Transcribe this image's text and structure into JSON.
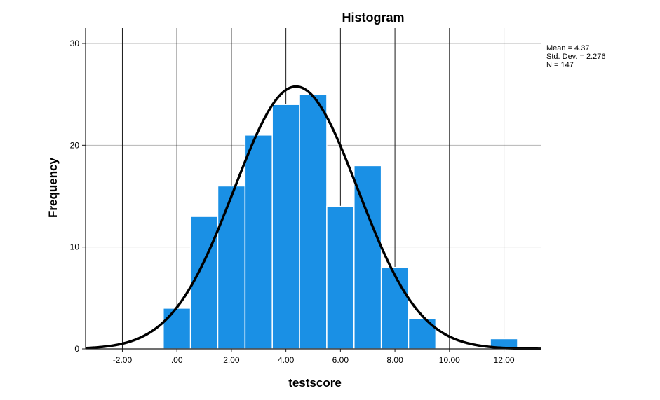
{
  "chart_data": {
    "type": "bar",
    "title": "Histogram",
    "xlabel": "testscore",
    "ylabel": "Frequency",
    "bins": [
      {
        "start": -0.5,
        "end": 0.5,
        "count": 4
      },
      {
        "start": 0.5,
        "end": 1.5,
        "count": 13
      },
      {
        "start": 1.5,
        "end": 2.5,
        "count": 16
      },
      {
        "start": 2.5,
        "end": 3.5,
        "count": 21
      },
      {
        "start": 3.5,
        "end": 4.5,
        "count": 24
      },
      {
        "start": 4.5,
        "end": 5.5,
        "count": 25
      },
      {
        "start": 5.5,
        "end": 6.5,
        "count": 14
      },
      {
        "start": 6.5,
        "end": 7.5,
        "count": 18
      },
      {
        "start": 7.5,
        "end": 8.5,
        "count": 8
      },
      {
        "start": 8.5,
        "end": 9.5,
        "count": 3
      },
      {
        "start": 11.5,
        "end": 12.5,
        "count": 1
      }
    ],
    "xticks": [
      -2,
      0,
      2,
      4,
      6,
      8,
      10,
      12
    ],
    "xtick_labels": [
      "-2.00",
      ".00",
      "2.00",
      "4.00",
      "6.00",
      "8.00",
      "10.00",
      "12.00"
    ],
    "yticks": [
      0,
      10,
      20,
      30
    ],
    "ytick_labels": [
      "0",
      "10",
      "20",
      "30"
    ],
    "xlim": [
      -3.35,
      13.35
    ],
    "ylim": [
      0,
      30
    ],
    "grid": true,
    "bar_color": "#1a90e5",
    "curve": {
      "type": "normal",
      "mean": 4.37,
      "std": 2.276,
      "n": 147,
      "bin_width": 1,
      "color": "#000000"
    },
    "stats_lines": [
      "Mean = 4.37",
      "Std. Dev. = 2.276",
      "N = 147"
    ],
    "stats_position": "top-right"
  }
}
